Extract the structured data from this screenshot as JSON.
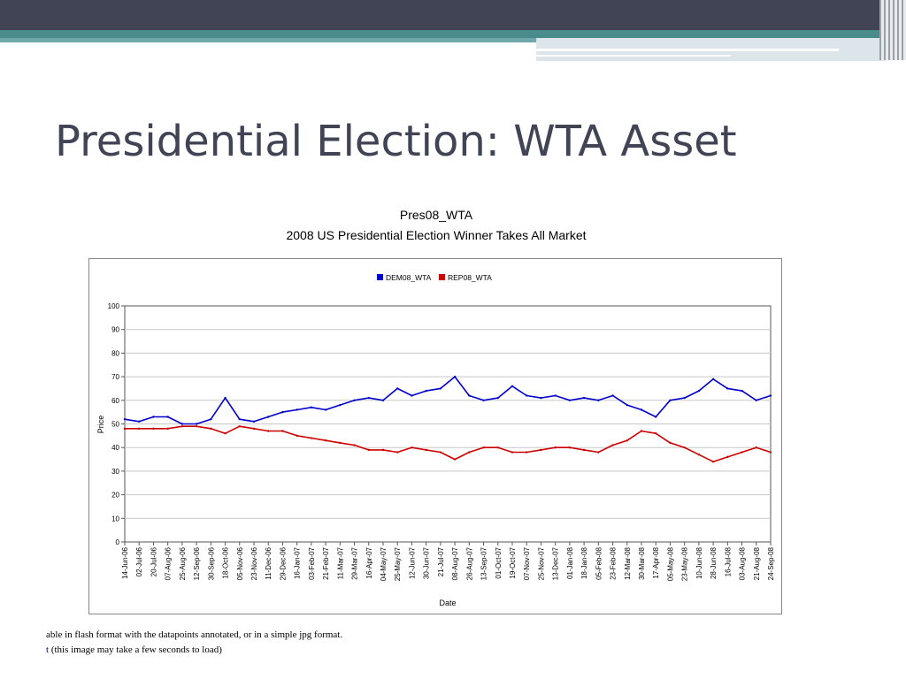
{
  "slide": {
    "title": "Presidential Election: WTA Asset"
  },
  "footer": {
    "line1": "able in flash format with the datapoints annotated, or in a simple jpg format.",
    "line2_link": "t",
    "line2_text": " (this image may take a few seconds to load)"
  },
  "chart_data": {
    "type": "line",
    "title": "Pres08_WTA",
    "subtitle": "2008 US Presidential Election Winner Takes All Market",
    "xlabel": "Date",
    "ylabel": "Price",
    "ylim": [
      0,
      100
    ],
    "yticks": [
      0,
      10,
      20,
      30,
      40,
      50,
      60,
      70,
      80,
      90,
      100
    ],
    "grid": true,
    "legend_position": "top-center",
    "categories": [
      "14-Jun-06",
      "02-Jul-06",
      "20-Jul-06",
      "07-Aug-06",
      "25-Aug-06",
      "12-Sep-06",
      "30-Sep-06",
      "18-Oct-06",
      "05-Nov-06",
      "23-Nov-06",
      "11-Dec-06",
      "29-Dec-06",
      "16-Jan-07",
      "03-Feb-07",
      "21-Feb-07",
      "11-Mar-07",
      "29-Mar-07",
      "16-Apr-07",
      "04-May-07",
      "25-May-07",
      "12-Jun-07",
      "30-Jun-07",
      "21-Jul-07",
      "08-Aug-07",
      "26-Aug-07",
      "13-Sep-07",
      "01-Oct-07",
      "19-Oct-07",
      "07-Nov-07",
      "25-Nov-07",
      "13-Dec-07",
      "01-Jan-08",
      "18-Jan-08",
      "05-Feb-08",
      "23-Feb-08",
      "12-Mar-08",
      "30-Mar-08",
      "17-Apr-08",
      "05-May-08",
      "23-May-08",
      "10-Jun-08",
      "28-Jun-08",
      "16-Jul-08",
      "03-Aug-08",
      "21-Aug-08",
      "24-Sep-08"
    ],
    "series": [
      {
        "name": "DEM08_WTA",
        "color": "#0000cc",
        "values": [
          52,
          51,
          53,
          53,
          50,
          50,
          52,
          61,
          52,
          51,
          53,
          55,
          56,
          57,
          56,
          58,
          60,
          61,
          60,
          65,
          62,
          64,
          65,
          70,
          62,
          60,
          61,
          66,
          62,
          61,
          62,
          60,
          61,
          60,
          62,
          58,
          56,
          53,
          60,
          61,
          64,
          69,
          65,
          64,
          60,
          62
        ]
      },
      {
        "name": "REP08_WTA",
        "color": "#cc0000",
        "values": [
          48,
          48,
          48,
          48,
          49,
          49,
          48,
          46,
          49,
          48,
          47,
          47,
          45,
          44,
          43,
          42,
          41,
          39,
          39,
          38,
          40,
          39,
          38,
          35,
          38,
          40,
          40,
          38,
          38,
          39,
          40,
          40,
          39,
          38,
          41,
          43,
          47,
          46,
          42,
          40,
          37,
          34,
          36,
          38,
          40,
          38
        ]
      }
    ]
  }
}
